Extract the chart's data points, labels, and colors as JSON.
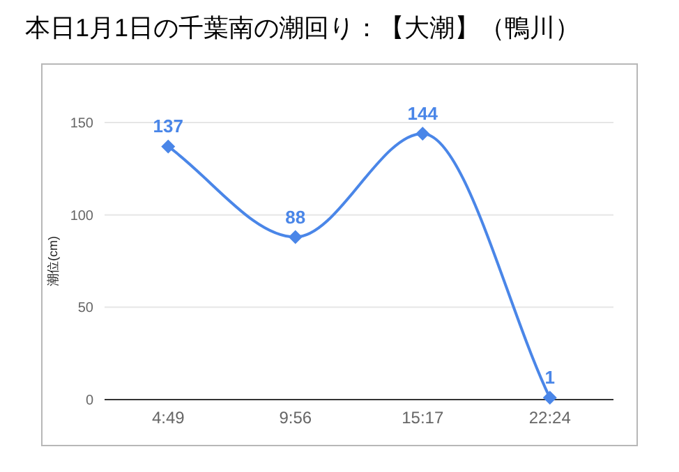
{
  "chart_data": {
    "type": "line",
    "title": "本日1月1日の千葉南の潮回り：【大潮】（鴨川）",
    "ylabel": "潮位(cm)",
    "categories": [
      "4:49",
      "9:56",
      "15:17",
      "22:24"
    ],
    "series": [
      {
        "color": "#4a86e8",
        "values": [
          137,
          88,
          144,
          1
        ]
      }
    ],
    "ylim": [
      0,
      150
    ],
    "yticks": [
      0,
      50,
      100,
      150
    ],
    "grid": "y",
    "marker": "diamond",
    "line_style": "solid",
    "data_labels": true
  }
}
